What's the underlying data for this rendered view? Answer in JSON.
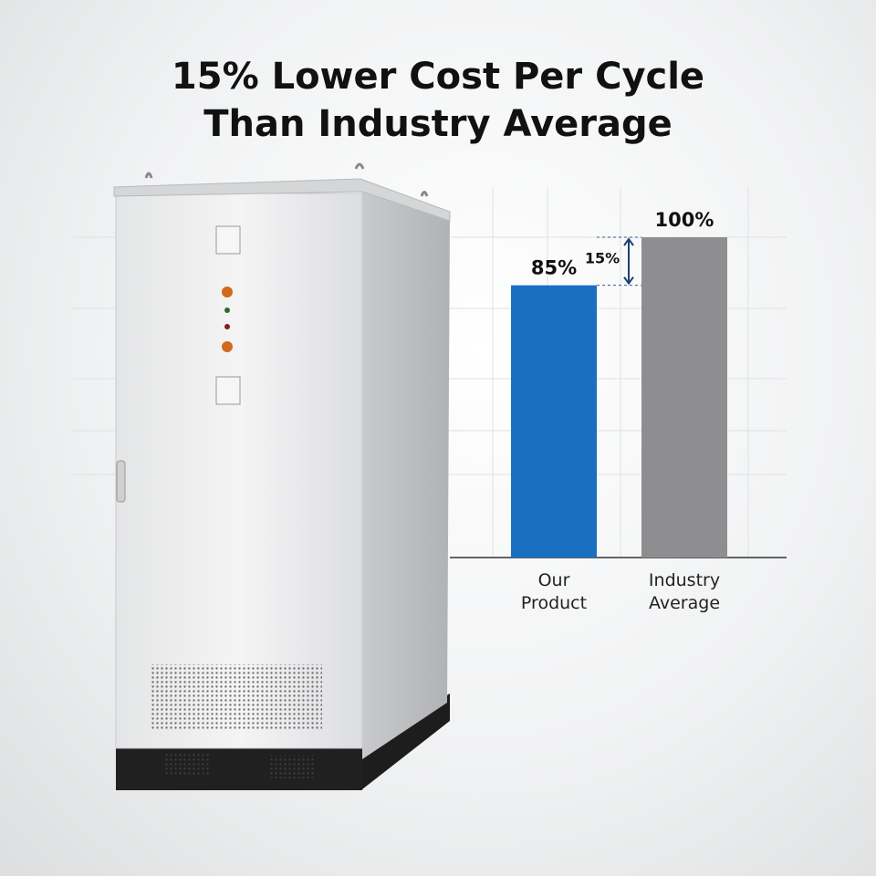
{
  "chart_data": {
    "type": "bar",
    "title": "15% Lower Cost Per Cycle Than Industry Average",
    "categories": [
      "Our Product",
      "Industry Average"
    ],
    "values": [
      85,
      100
    ],
    "value_labels": [
      "85%",
      "100%"
    ],
    "colors": [
      "#1b6fc0",
      "#8e8e91"
    ],
    "annotation": "15%"
  }
}
